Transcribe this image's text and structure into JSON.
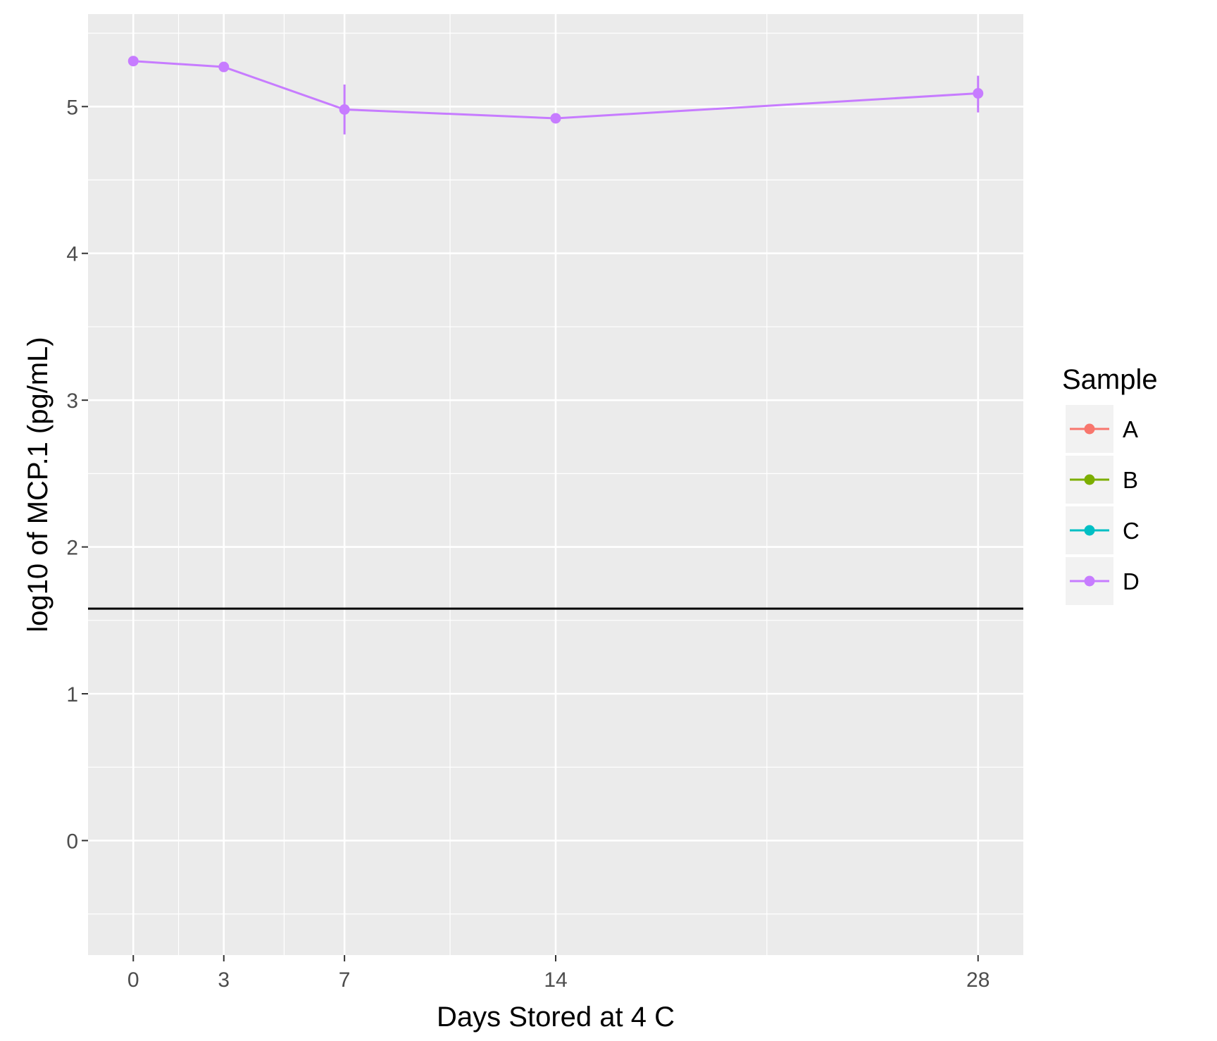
{
  "chart_data": {
    "type": "line",
    "xlabel": "Days Stored at 4 C",
    "ylabel": "log10 of MCP.1 (pg/mL)",
    "xlim": [
      -1.5,
      29.5
    ],
    "ylim": [
      -0.78,
      5.63
    ],
    "x_ticks": [
      0,
      3,
      7,
      14,
      28
    ],
    "x_tick_labels": [
      "0",
      "3",
      "7",
      "14",
      "28"
    ],
    "x_minor_gridlines": [
      1.5,
      5,
      10.5,
      21
    ],
    "y_ticks": [
      0,
      1,
      2,
      3,
      4,
      5
    ],
    "y_tick_labels": [
      "0",
      "1",
      "2",
      "3",
      "4",
      "5"
    ],
    "y_minor_gridlines": [
      -0.5,
      0.5,
      1.5,
      2.5,
      3.5,
      4.5,
      5.5
    ],
    "grid": true,
    "panel_background": "#ebebeb",
    "hline": {
      "y": 1.58,
      "color": "#000000"
    },
    "legend": {
      "title": "Sample",
      "position": "right",
      "items": [
        {
          "label": "A",
          "color": "#f8766d"
        },
        {
          "label": "B",
          "color": "#7cae00"
        },
        {
          "label": "C",
          "color": "#00bfc4"
        },
        {
          "label": "D",
          "color": "#c77cff"
        }
      ]
    },
    "series": [
      {
        "name": "D",
        "color": "#c77cff",
        "points": [
          {
            "x": 0,
            "y": 5.31,
            "ymin": 5.31,
            "ymax": 5.31
          },
          {
            "x": 3,
            "y": 5.27,
            "ymin": 5.27,
            "ymax": 5.27
          },
          {
            "x": 7,
            "y": 4.98,
            "ymin": 4.81,
            "ymax": 5.15
          },
          {
            "x": 14,
            "y": 4.92,
            "ymin": 4.92,
            "ymax": 4.92
          },
          {
            "x": 28,
            "y": 5.09,
            "ymin": 4.96,
            "ymax": 5.21
          }
        ]
      }
    ]
  }
}
